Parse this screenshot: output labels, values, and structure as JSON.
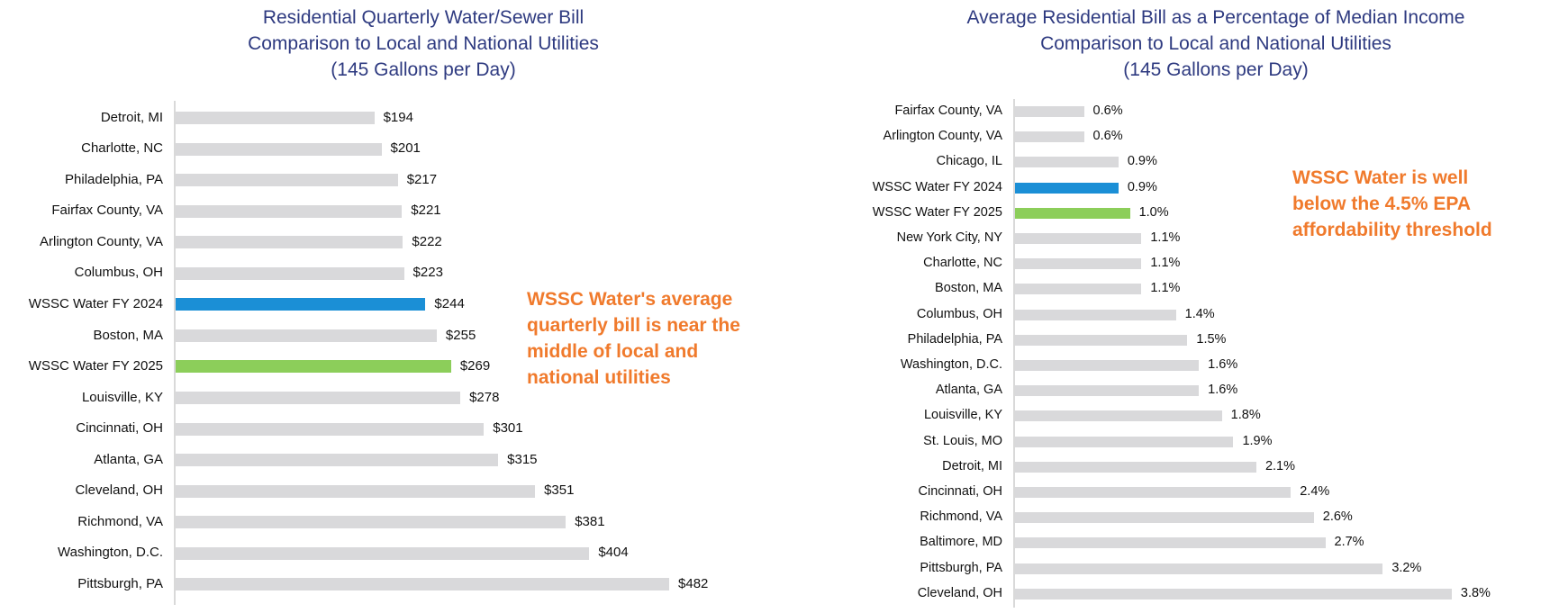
{
  "colors": {
    "title": "#2e3a80",
    "bar_default": "#d9d9db",
    "bar_fy2024": "#1b8fd6",
    "bar_fy2025": "#8cce5a",
    "callout": "#f07a2c",
    "axis": "#d9d9d9"
  },
  "left": {
    "title_lines": [
      "Residential Quarterly Water/Sewer Bill",
      "Comparison to Local and National Utilities",
      "(145 Gallons per Day)"
    ],
    "callout_lines": [
      "WSSC Water's average",
      "quarterly bill is near the",
      "middle of local and",
      "national utilities"
    ]
  },
  "right": {
    "title_lines": [
      "Average Residential Bill as a Percentage of Median Income",
      "Comparison to Local and National Utilities",
      "(145 Gallons per Day)"
    ],
    "callout_lines": [
      "WSSC Water is well",
      "below the 4.5% EPA",
      "affordability threshold"
    ]
  },
  "chart_data": [
    {
      "type": "bar",
      "orientation": "horizontal",
      "title": "Residential Quarterly Water/Sewer Bill Comparison to Local and National Utilities (145 Gallons per Day)",
      "xlabel": "",
      "ylabel": "",
      "grid": false,
      "legend": null,
      "categories": [
        "Detroit, MI",
        "Charlotte, NC",
        "Philadelphia, PA",
        "Fairfax County, VA",
        "Arlington County, VA",
        "Columbus, OH",
        "WSSC Water FY 2024",
        "Boston, MA",
        "WSSC Water FY 2025",
        "Louisville, KY",
        "Cincinnati, OH",
        "Atlanta, GA",
        "Cleveland, OH",
        "Richmond, VA",
        "Washington, D.C.",
        "Pittsburgh, PA"
      ],
      "values": [
        194,
        201,
        217,
        221,
        222,
        223,
        244,
        255,
        269,
        278,
        301,
        315,
        351,
        381,
        404,
        482
      ],
      "labels": [
        "$194",
        "$201",
        "$217",
        "$221",
        "$222",
        "$223",
        "$244",
        "$255",
        "$269",
        "$278",
        "$301",
        "$315",
        "$351",
        "$381",
        "$404",
        "$482"
      ],
      "highlight": {
        "WSSC Water FY 2024": "#1b8fd6",
        "WSSC Water FY 2025": "#8cce5a"
      },
      "annotations": [
        "WSSC Water's average quarterly bill is near the middle of local and national utilities"
      ],
      "unit": "USD"
    },
    {
      "type": "bar",
      "orientation": "horizontal",
      "title": "Average Residential Bill as a Percentage of Median Income Comparison to Local and National Utilities (145 Gallons per Day)",
      "xlabel": "",
      "ylabel": "",
      "grid": false,
      "legend": null,
      "categories": [
        "Fairfax County, VA",
        "Arlington County, VA",
        "Chicago, IL",
        "WSSC Water FY 2024",
        "WSSC Water FY 2025",
        "New York City, NY",
        "Charlotte, NC",
        "Boston, MA",
        "Columbus, OH",
        "Philadelphia, PA",
        "Washington, D.C.",
        "Atlanta, GA",
        "Louisville, KY",
        "St. Louis, MO",
        "Detroit, MI",
        "Cincinnati, OH",
        "Richmond, VA",
        "Baltimore, MD",
        "Pittsburgh, PA",
        "Cleveland, OH"
      ],
      "values": [
        0.6,
        0.6,
        0.9,
        0.9,
        1.0,
        1.1,
        1.1,
        1.1,
        1.4,
        1.5,
        1.6,
        1.6,
        1.8,
        1.9,
        2.1,
        2.4,
        2.6,
        2.7,
        3.2,
        3.8
      ],
      "labels": [
        "0.6%",
        "0.6%",
        "0.9%",
        "0.9%",
        "1.0%",
        "1.1%",
        "1.1%",
        "1.1%",
        "1.4%",
        "1.5%",
        "1.6%",
        "1.6%",
        "1.8%",
        "1.9%",
        "2.1%",
        "2.4%",
        "2.6%",
        "2.7%",
        "3.2%",
        "3.8%"
      ],
      "highlight": {
        "WSSC Water FY 2024": "#1b8fd6",
        "WSSC Water FY 2025": "#8cce5a"
      },
      "annotations": [
        "WSSC Water is well below the 4.5% EPA affordability threshold"
      ],
      "unit": "percent"
    }
  ]
}
